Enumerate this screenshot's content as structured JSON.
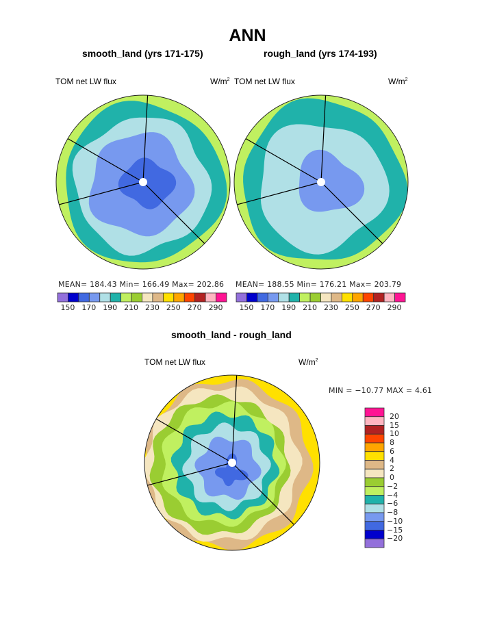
{
  "figure": {
    "title": "ANN"
  },
  "colors": {
    "levels16": [
      "#9370db",
      "#0000cd",
      "#4169e1",
      "#7799ef",
      "#b0e0e6",
      "#20b2aa",
      "#c0f060",
      "#9acd32",
      "#f5e6c0",
      "#deb887",
      "#ffe000",
      "#ffa500",
      "#ff4500",
      "#b22222",
      "#ffb6c1",
      "#ff1493"
    ]
  },
  "panels": [
    {
      "id": "smooth",
      "title": "smooth_land (yrs 171-175)",
      "variable": "TOM net LW flux",
      "units_base": "W/m",
      "units_exp": "2",
      "stats_text": "MEAN= 184.43   Min= 166.49   Max= 202.86",
      "mean": 184.43,
      "min": 166.49,
      "max": 202.86,
      "colorbar_labels": [
        "150",
        "170",
        "190",
        "210",
        "230",
        "250",
        "270",
        "290"
      ]
    },
    {
      "id": "rough",
      "title": "rough_land (yrs 174-193)",
      "variable": "TOM net LW flux",
      "units_base": "W/m",
      "units_exp": "2",
      "stats_text": "MEAN= 188.55   Min= 176.21   Max= 203.79",
      "mean": 188.55,
      "min": 176.21,
      "max": 203.79,
      "colorbar_labels": [
        "150",
        "170",
        "190",
        "210",
        "230",
        "250",
        "270",
        "290"
      ]
    },
    {
      "id": "diff",
      "title": "smooth_land - rough_land",
      "variable": "TOM net LW flux",
      "units_base": "W/m",
      "units_exp": "2",
      "stats_text": "MIN = −10.77 MAX =    4.61",
      "min": -10.77,
      "max": 4.61,
      "colorbar_labels": [
        "20",
        "15",
        "10",
        "8",
        "6",
        "4",
        "2",
        "0",
        "−2",
        "−4",
        "−6",
        "−8",
        "−10",
        "−15",
        "−20"
      ]
    }
  ],
  "chart_data": [
    {
      "type": "heatmap",
      "projection": "polar stereographic (South Pole)",
      "title": "smooth_land (yrs 171-175)",
      "variable": "TOM net LW flux",
      "units": "W/m2",
      "stats": {
        "mean": 184.43,
        "min": 166.49,
        "max": 202.86
      },
      "contour_levels": [
        150,
        160,
        170,
        180,
        190,
        200,
        210,
        220,
        230,
        240,
        250,
        260,
        270,
        280,
        290
      ],
      "bands_outer_to_inner": [
        {
          "range": "200-210",
          "color_index": 6
        },
        {
          "range": "190-200",
          "color_index": 5
        },
        {
          "range": "180-190",
          "color_index": 4
        },
        {
          "range": "170-180",
          "color_index": 3
        },
        {
          "range": "160-170",
          "color_index": 2
        }
      ]
    },
    {
      "type": "heatmap",
      "projection": "polar stereographic (South Pole)",
      "title": "rough_land (yrs 174-193)",
      "variable": "TOM net LW flux",
      "units": "W/m2",
      "stats": {
        "mean": 188.55,
        "min": 176.21,
        "max": 203.79
      },
      "contour_levels": [
        150,
        160,
        170,
        180,
        190,
        200,
        210,
        220,
        230,
        240,
        250,
        260,
        270,
        280,
        290
      ],
      "bands_outer_to_inner": [
        {
          "range": "200-210",
          "color_index": 6
        },
        {
          "range": "190-200",
          "color_index": 5
        },
        {
          "range": "180-190",
          "color_index": 4
        },
        {
          "range": "170-180",
          "color_index": 3
        }
      ]
    },
    {
      "type": "heatmap",
      "projection": "polar stereographic (South Pole)",
      "title": "smooth_land - rough_land",
      "variable": "TOM net LW flux",
      "units": "W/m2",
      "stats": {
        "min": -10.77,
        "max": 4.61
      },
      "contour_levels": [
        -20,
        -15,
        -10,
        -8,
        -6,
        -4,
        -2,
        0,
        2,
        4,
        6,
        8,
        10,
        15,
        20
      ],
      "bands_outer_to_inner": [
        {
          "range": "4-6",
          "color_index": 10
        },
        {
          "range": "2-4",
          "color_index": 9
        },
        {
          "range": "0-2",
          "color_index": 8
        },
        {
          "range": "-2-0",
          "color_index": 7
        },
        {
          "range": "-4--2",
          "color_index": 6
        },
        {
          "range": "-6--4",
          "color_index": 5
        },
        {
          "range": "-8--6",
          "color_index": 4
        },
        {
          "range": "-10--8",
          "color_index": 3
        },
        {
          "range": "-15--10",
          "color_index": 2
        }
      ]
    }
  ]
}
